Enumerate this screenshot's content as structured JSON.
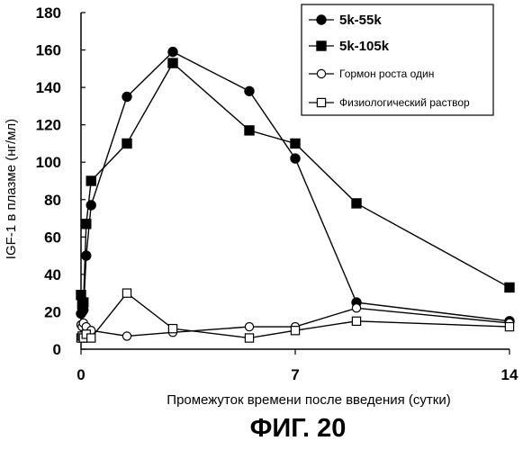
{
  "chart_data": {
    "type": "line",
    "xlabel": "Промежуток времени после введения (сутки)",
    "ylabel": "IGF-1 в плазме (нг/мл)",
    "xlim": [
      0,
      14
    ],
    "ylim": [
      0,
      180
    ],
    "x_ticks": [
      0,
      7,
      14
    ],
    "y_ticks": [
      0,
      20,
      40,
      60,
      80,
      100,
      120,
      140,
      160,
      180
    ],
    "grid": false,
    "legend_position": "top-right",
    "series": [
      {
        "name": "5k-55k",
        "marker": "filled-circle",
        "points": [
          [
            0,
            19
          ],
          [
            0.04,
            20
          ],
          [
            0.08,
            21
          ],
          [
            0.17,
            50
          ],
          [
            0.33,
            77
          ],
          [
            1.5,
            135
          ],
          [
            3,
            159
          ],
          [
            5.5,
            138
          ],
          [
            7,
            102
          ],
          [
            9,
            25
          ],
          [
            14,
            15
          ]
        ]
      },
      {
        "name": "5k-105k",
        "marker": "filled-square",
        "points": [
          [
            0,
            29
          ],
          [
            0.04,
            24
          ],
          [
            0.08,
            25
          ],
          [
            0.17,
            67
          ],
          [
            0.33,
            90
          ],
          [
            1.5,
            110
          ],
          [
            3,
            153
          ],
          [
            5.5,
            117
          ],
          [
            7,
            110
          ],
          [
            9,
            78
          ],
          [
            14,
            33
          ]
        ]
      },
      {
        "name": "Гормон роста один",
        "marker": "open-circle",
        "points": [
          [
            0,
            13
          ],
          [
            0.04,
            12
          ],
          [
            0.08,
            14
          ],
          [
            0.17,
            12
          ],
          [
            0.33,
            10
          ],
          [
            1.5,
            7
          ],
          [
            3,
            9
          ],
          [
            5.5,
            12
          ],
          [
            7,
            12
          ],
          [
            9,
            22
          ],
          [
            14,
            14
          ]
        ]
      },
      {
        "name": "Физиологический раствор",
        "marker": "open-square",
        "points": [
          [
            0,
            6
          ],
          [
            0.04,
            7
          ],
          [
            0.08,
            6
          ],
          [
            0.17,
            8
          ],
          [
            0.33,
            6
          ],
          [
            1.5,
            30
          ],
          [
            3,
            11
          ],
          [
            5.5,
            6
          ],
          [
            7,
            10
          ],
          [
            9,
            15
          ],
          [
            14,
            12
          ]
        ]
      }
    ]
  },
  "figure_title": "ФИГ. 20"
}
